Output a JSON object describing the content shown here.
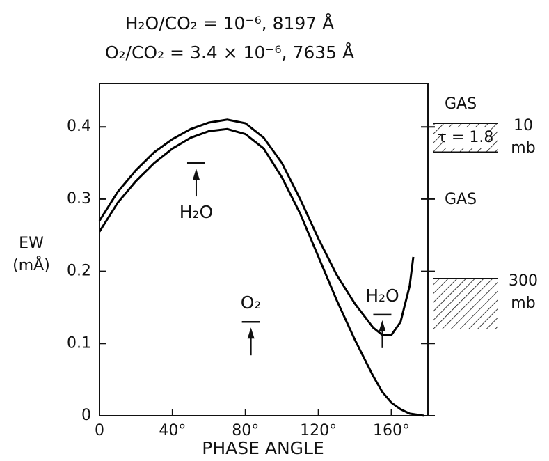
{
  "chart_data": {
    "type": "line",
    "title": "H₂O/CO₂ = 10⁻⁶, 8197 Å",
    "subtitle": "O₂/CO₂ = 3.4 × 10⁻⁶, 7635 Å",
    "y_label": [
      "EW",
      "(mÅ)"
    ],
    "x_label": "PHASE ANGLE",
    "xlim": [
      0,
      180
    ],
    "ylim": [
      0,
      0.46
    ],
    "xticks": [
      0,
      {
        "value": 40,
        "label": "40°"
      },
      {
        "value": 80,
        "label": "80°"
      },
      {
        "value": 120,
        "label": "120°"
      },
      {
        "value": 160,
        "label": "160°"
      }
    ],
    "yticks": [
      0,
      0.1,
      0.2,
      0.3,
      0.4
    ],
    "series": [
      {
        "color": "#000000",
        "x": [
          0,
          10,
          20,
          30,
          40,
          50,
          60,
          70,
          80,
          90,
          100,
          110,
          120,
          130,
          140,
          150,
          155,
          160,
          165,
          170,
          172
        ],
        "values": [
          0.27,
          0.31,
          0.34,
          0.365,
          0.383,
          0.397,
          0.406,
          0.41,
          0.405,
          0.385,
          0.35,
          0.3,
          0.245,
          0.195,
          0.155,
          0.122,
          0.112,
          0.112,
          0.13,
          0.18,
          0.22
        ]
      },
      {
        "color": "#000000",
        "x": [
          0,
          10,
          20,
          30,
          40,
          50,
          60,
          70,
          80,
          90,
          100,
          110,
          120,
          130,
          140,
          150,
          155,
          160,
          165,
          170,
          178
        ],
        "values": [
          0.255,
          0.295,
          0.325,
          0.35,
          0.37,
          0.385,
          0.394,
          0.397,
          0.39,
          0.37,
          0.33,
          0.28,
          0.22,
          0.16,
          0.105,
          0.055,
          0.033,
          0.018,
          0.009,
          0.003,
          0
        ]
      }
    ],
    "markers": [
      {
        "label": "H₂O",
        "x": 53,
        "y": 0.35,
        "label_position": "below"
      },
      {
        "label": "O₂",
        "x": 83,
        "y": 0.13,
        "label_position": "above"
      },
      {
        "label": "H₂O",
        "x": 155,
        "y": 0.14,
        "label_position": "above"
      }
    ],
    "gas_labels": [
      "GAS",
      "GAS"
    ],
    "layers": [
      {
        "label": "τ = 1.8",
        "top": 0.405,
        "bottom": 0.365,
        "pressure_value": 10,
        "pressure_unit": "mb"
      },
      {
        "top": 0.19,
        "bottom": 0.12,
        "pressure_value": 300,
        "pressure_unit": "mb"
      }
    ]
  }
}
